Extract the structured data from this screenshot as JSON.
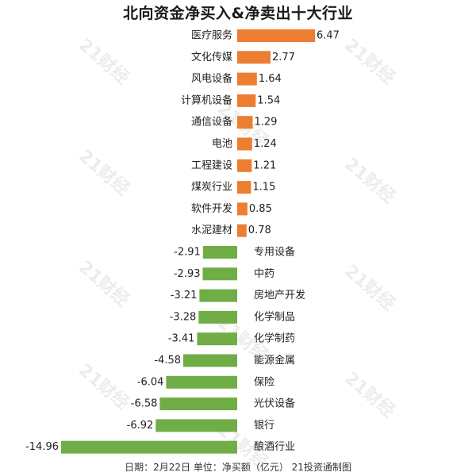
{
  "title": "北向资金净买入&净卖出十大行业",
  "footer": "日期：2月22日 单位：净买额（亿元） 21投资通制图",
  "watermark": "21财经",
  "colors": {
    "positive": "#ED7D31",
    "negative": "#70AD47",
    "text": "#222222"
  },
  "chart_data": {
    "type": "bar",
    "orientation": "horizontal",
    "title": "北向资金净买入&净卖出十大行业",
    "categories": [
      "医疗服务",
      "文化传媒",
      "风电设备",
      "计算机设备",
      "通信设备",
      "电池",
      "工程建设",
      "煤炭行业",
      "软件开发",
      "水泥建材",
      "专用设备",
      "中药",
      "房地产开发",
      "化学制品",
      "化学制药",
      "能源金属",
      "保险",
      "光伏设备",
      "银行",
      "酿酒行业"
    ],
    "values": [
      6.47,
      2.77,
      1.64,
      1.54,
      1.29,
      1.24,
      1.21,
      1.15,
      0.85,
      0.78,
      -2.91,
      -2.93,
      -3.21,
      -3.28,
      -3.41,
      -4.58,
      -6.04,
      -6.58,
      -6.92,
      -14.96
    ],
    "value_labels": [
      "6.47",
      "2.77",
      "1.64",
      "1.54",
      "1.29",
      "1.24",
      "1.21",
      "1.15",
      "0.85",
      "0.78",
      "-2.91",
      "-2.93",
      "-3.21",
      "-3.28",
      "-3.41",
      "-4.58",
      "-6.04",
      "-6.58",
      "-6.92",
      "-14.96"
    ],
    "xlim": [
      -14.96,
      6.47
    ],
    "grid": false,
    "legend": "none"
  }
}
